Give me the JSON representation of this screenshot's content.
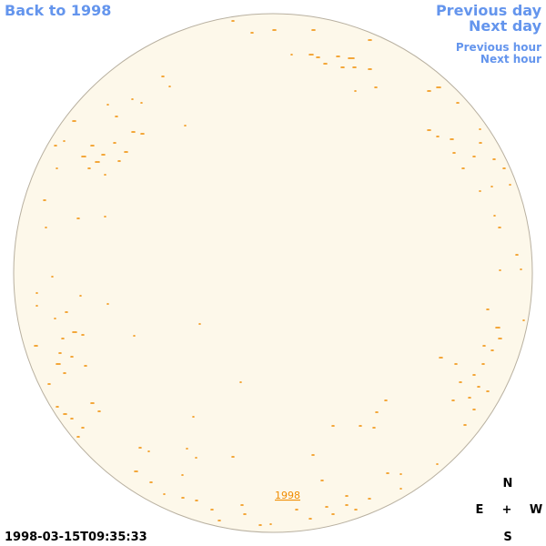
{
  "navigation": {
    "back": "Back to 1998",
    "previous_day": "Previous day",
    "next_day": "Next day",
    "previous_hour": "Previous hour",
    "next_hour": "Next hour"
  },
  "image": {
    "year_link": "1998",
    "timestamp": "1998-03-15T09:35:33"
  },
  "compass": {
    "north": "N",
    "east": "E",
    "center": "+",
    "west": "W",
    "south": "S"
  }
}
